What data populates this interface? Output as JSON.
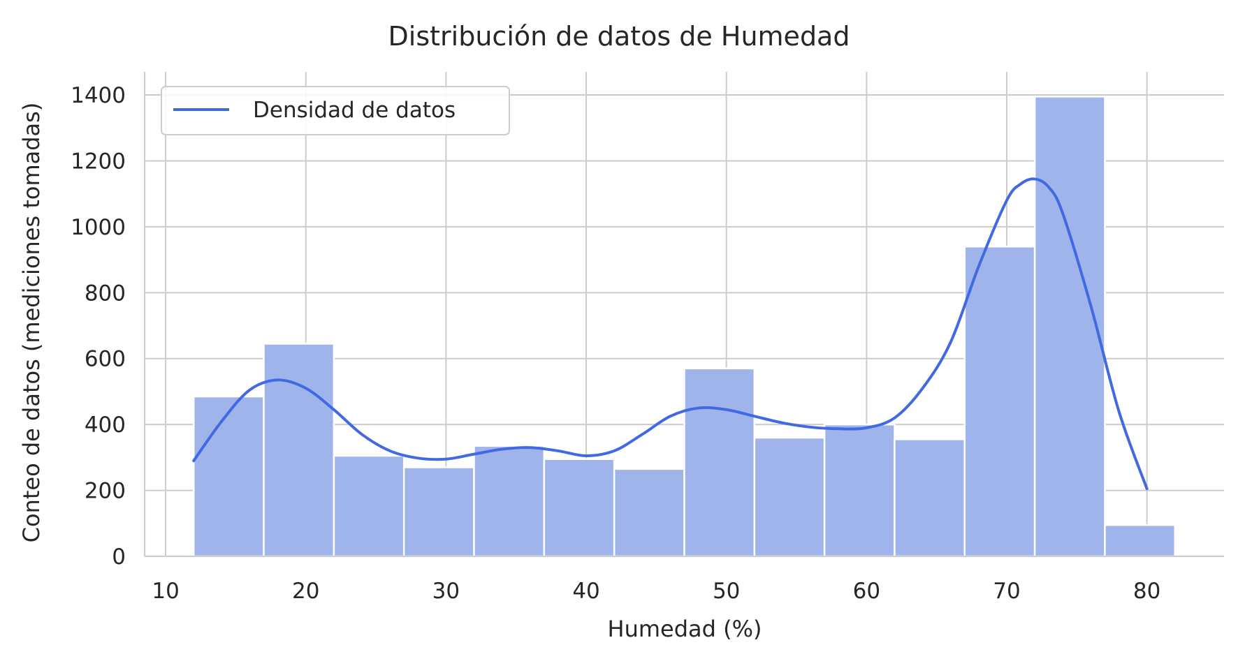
{
  "chart_data": {
    "type": "bar",
    "title": "Distribución de datos de Humedad",
    "xlabel": "Humedad (%)",
    "ylabel": "Conteo de datos (mediciones tomadas)",
    "xlim": [
      8.5,
      85.5
    ],
    "ylim": [
      0,
      1470
    ],
    "xticks": [
      10,
      20,
      30,
      40,
      50,
      60,
      70,
      80
    ],
    "yticks": [
      0,
      200,
      400,
      600,
      800,
      1000,
      1200,
      1400
    ],
    "grid": true,
    "legend_position": "top-left",
    "bins": [
      {
        "x0": 12,
        "x1": 17,
        "count": 485
      },
      {
        "x0": 17,
        "x1": 22,
        "count": 645
      },
      {
        "x0": 22,
        "x1": 27,
        "count": 305
      },
      {
        "x0": 27,
        "x1": 32,
        "count": 270
      },
      {
        "x0": 32,
        "x1": 37,
        "count": 335
      },
      {
        "x0": 37,
        "x1": 42,
        "count": 295
      },
      {
        "x0": 42,
        "x1": 47,
        "count": 265
      },
      {
        "x0": 47,
        "x1": 52,
        "count": 570
      },
      {
        "x0": 52,
        "x1": 57,
        "count": 360
      },
      {
        "x0": 57,
        "x1": 62,
        "count": 400
      },
      {
        "x0": 62,
        "x1": 67,
        "count": 355
      },
      {
        "x0": 67,
        "x1": 72,
        "count": 940
      },
      {
        "x0": 72,
        "x1": 77,
        "count": 1395
      },
      {
        "x0": 77,
        "x1": 82,
        "count": 95
      }
    ],
    "series": [
      {
        "name": "Densidad de datos",
        "type": "line",
        "x": [
          12,
          14,
          16,
          18,
          20,
          22,
          24,
          26,
          28,
          30,
          32,
          34,
          36,
          38,
          40,
          42,
          44,
          46,
          48,
          50,
          52,
          54,
          56,
          58,
          60,
          62,
          64,
          66,
          68,
          70,
          71,
          72,
          73,
          74,
          76,
          78,
          80
        ],
        "y": [
          290,
          410,
          505,
          535,
          510,
          445,
          370,
          320,
          298,
          295,
          310,
          325,
          330,
          320,
          305,
          320,
          370,
          425,
          450,
          445,
          425,
          405,
          392,
          387,
          390,
          420,
          510,
          650,
          880,
          1080,
          1130,
          1145,
          1120,
          1040,
          760,
          440,
          205
        ]
      }
    ],
    "colors": {
      "bar_fill": "#a0b4ec",
      "density_line": "#4169e1",
      "grid": "#cccccc",
      "text": "#262626"
    }
  }
}
